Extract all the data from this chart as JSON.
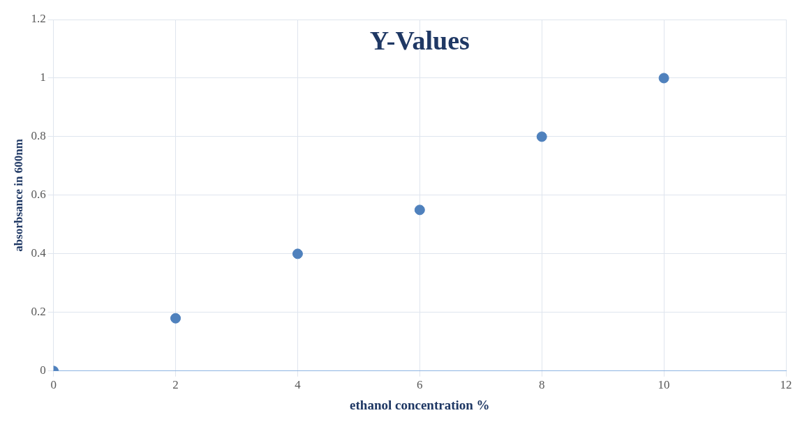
{
  "chart_data": {
    "type": "scatter",
    "title": "Y-Values",
    "xlabel": "ethanol concentration %",
    "ylabel": "absorbsance in 600nm",
    "x": [
      0,
      2,
      4,
      6,
      8,
      10
    ],
    "series": [
      {
        "color": "#4f81bd",
        "values": [
          0,
          0.18,
          0.4,
          0.55,
          0.8,
          1
        ]
      }
    ],
    "xlim": [
      0,
      12
    ],
    "xticks": [
      0,
      2,
      4,
      6,
      8,
      10,
      12
    ],
    "ylim": [
      0,
      1.2
    ],
    "yticks": [
      0,
      0.2,
      0.4,
      0.6,
      0.8,
      1,
      1.2
    ],
    "grid": true,
    "legend": false,
    "marker": "circle"
  }
}
